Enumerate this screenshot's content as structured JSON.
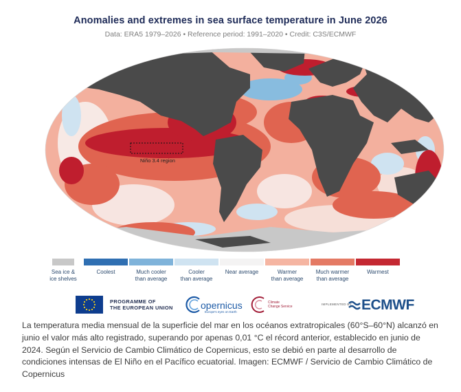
{
  "title": "Anomalies and extremes in sea surface temperature in June 2026",
  "subtitle": "Data: ERA5 1979–2026 • Reference period: 1991–2020 • Credit: C3S/ECMWF",
  "map": {
    "region_label": "Niño 3.4 region",
    "colors": {
      "land": "#4a4a4a",
      "ice": "#c8c8c8",
      "warmest": "#bf1e2e",
      "much_warmer": "#e06450",
      "warmer": "#f3b09e",
      "near": "#f7f3f1",
      "cooler": "#cfe3f1",
      "much_cooler": "#88bcdf"
    }
  },
  "legend": [
    {
      "label": "Sea ice &\nice shelves",
      "color": "#c8c8c8"
    },
    {
      "label": "Coolest",
      "color": "#2f6fb2"
    },
    {
      "label": "Much cooler\nthan average",
      "color": "#7fb3da"
    },
    {
      "label": "Cooler\nthan average",
      "color": "#cfe3f1"
    },
    {
      "label": "Near average",
      "color": "#f4f3f3"
    },
    {
      "label": "Warmer\nthan average",
      "color": "#f5b5a2"
    },
    {
      "label": "Much warmer\nthan average",
      "color": "#e47a64"
    },
    {
      "label": "Warmest",
      "color": "#c42832"
    }
  ],
  "logos": {
    "eu_line1": "PROGRAMME OF",
    "eu_line2": "THE EUROPEAN UNION",
    "copernicus": "opernicus",
    "copernicus_sub": "Europe's eyes on Earth",
    "c3s_line1": "Climate",
    "c3s_line2": "Change Service",
    "implemented_by": "IMPLEMENTED BY",
    "ecmwf": "ECMWF"
  },
  "caption": "La temperatura media mensual de la superficie del mar en los océanos extratropicales (60°S–60°N) alcanzó en junio el valor más alto registrado, superando por apenas 0,01 °C el récord anterior, establecido en junio de 2024. Según el Servicio de Cambio Climático de Copernicus, esto se debió en parte al desarrollo de condiciones intensas de El Niño en el Pacífico ecuatorial. Imagen: ECMWF / Servicio de Cambio Climático de Copernicus"
}
